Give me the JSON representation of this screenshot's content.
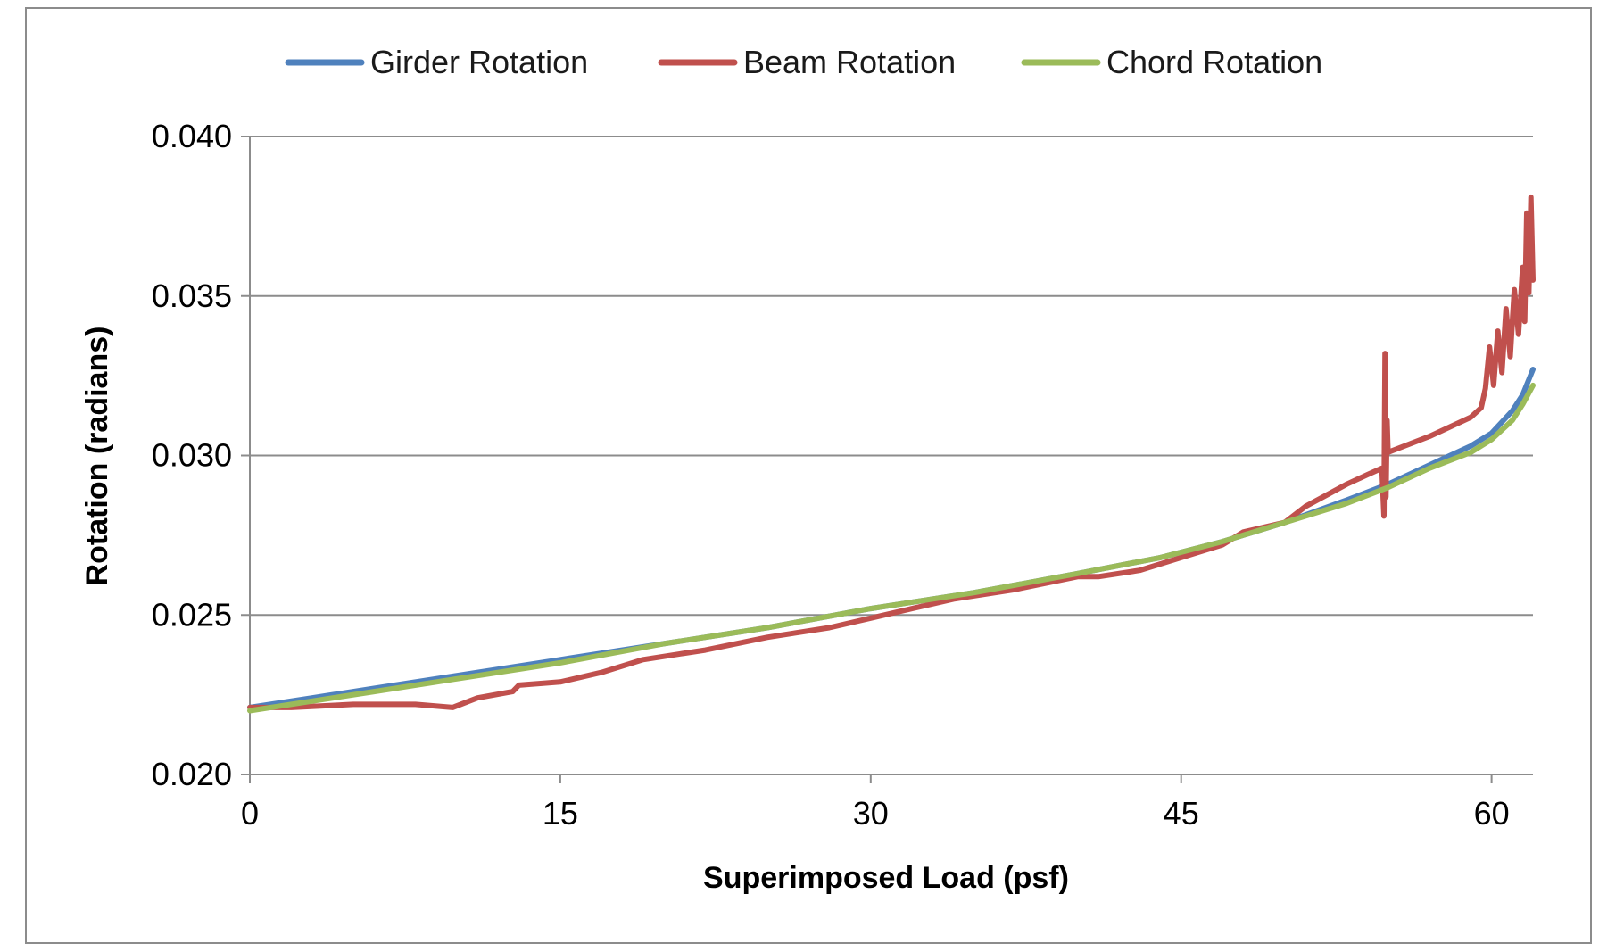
{
  "chart_data": {
    "type": "line",
    "title": "",
    "xlabel": "Superimposed Load (psf)",
    "ylabel": "Rotation (radians)",
    "xlim": [
      0,
      62
    ],
    "ylim": [
      0.02,
      0.04
    ],
    "x_ticks": [
      "0",
      "15",
      "30",
      "45",
      "60"
    ],
    "x_tick_values": [
      0,
      15,
      30,
      45,
      60
    ],
    "y_ticks": [
      "0.020",
      "0.025",
      "0.030",
      "0.035",
      "0.040"
    ],
    "y_tick_values": [
      0.02,
      0.025,
      0.03,
      0.035,
      0.04
    ],
    "grid": true,
    "legend_position": "top",
    "series": [
      {
        "name": "Girder Rotation",
        "color": "#4f81bd",
        "points": [
          [
            0,
            0.0221
          ],
          [
            3,
            0.0224
          ],
          [
            6,
            0.0227
          ],
          [
            10,
            0.0231
          ],
          [
            15,
            0.0236
          ],
          [
            20,
            0.0241
          ],
          [
            25,
            0.0246
          ],
          [
            30,
            0.0252
          ],
          [
            35,
            0.0257
          ],
          [
            40,
            0.0263
          ],
          [
            44,
            0.0268
          ],
          [
            47,
            0.0273
          ],
          [
            50,
            0.0279
          ],
          [
            53,
            0.0286
          ],
          [
            55,
            0.0291
          ],
          [
            57,
            0.0297
          ],
          [
            59,
            0.0303
          ],
          [
            60,
            0.0307
          ],
          [
            61,
            0.0314
          ],
          [
            61.5,
            0.0319
          ],
          [
            62,
            0.0327
          ]
        ]
      },
      {
        "name": "Beam Rotation",
        "color": "#c0504d",
        "points": [
          [
            0,
            0.0221
          ],
          [
            2,
            0.0221
          ],
          [
            5,
            0.0222
          ],
          [
            8,
            0.0222
          ],
          [
            9.8,
            0.0221
          ],
          [
            11,
            0.0224
          ],
          [
            12.7,
            0.0226
          ],
          [
            13,
            0.0228
          ],
          [
            15,
            0.0229
          ],
          [
            17,
            0.0232
          ],
          [
            19,
            0.0236
          ],
          [
            21,
            0.0238
          ],
          [
            22,
            0.0239
          ],
          [
            25,
            0.0243
          ],
          [
            28,
            0.0246
          ],
          [
            30,
            0.0249
          ],
          [
            32,
            0.0252
          ],
          [
            34,
            0.0255
          ],
          [
            37,
            0.0258
          ],
          [
            40,
            0.0262
          ],
          [
            41,
            0.0262
          ],
          [
            43,
            0.0264
          ],
          [
            45,
            0.0268
          ],
          [
            47,
            0.0272
          ],
          [
            48,
            0.0276
          ],
          [
            50,
            0.0279
          ],
          [
            51,
            0.0284
          ],
          [
            53,
            0.0291
          ],
          [
            54,
            0.0294
          ],
          [
            54.7,
            0.0296
          ],
          [
            54.8,
            0.0281
          ],
          [
            54.85,
            0.0332
          ],
          [
            54.9,
            0.0287
          ],
          [
            54.95,
            0.0311
          ],
          [
            55,
            0.0301
          ],
          [
            57,
            0.0306
          ],
          [
            59,
            0.0312
          ],
          [
            59.5,
            0.0315
          ],
          [
            59.7,
            0.0321
          ],
          [
            59.9,
            0.0334
          ],
          [
            60.1,
            0.0322
          ],
          [
            60.3,
            0.0339
          ],
          [
            60.5,
            0.0326
          ],
          [
            60.7,
            0.0346
          ],
          [
            60.9,
            0.0331
          ],
          [
            61.1,
            0.0352
          ],
          [
            61.3,
            0.0338
          ],
          [
            61.5,
            0.0359
          ],
          [
            61.6,
            0.0342
          ],
          [
            61.7,
            0.0376
          ],
          [
            61.8,
            0.0351
          ],
          [
            61.9,
            0.0381
          ],
          [
            62,
            0.0355
          ]
        ]
      },
      {
        "name": "Chord Rotation",
        "color": "#9bbb59",
        "points": [
          [
            0,
            0.022
          ],
          [
            3,
            0.0223
          ],
          [
            6,
            0.0226
          ],
          [
            10,
            0.023
          ],
          [
            15,
            0.0235
          ],
          [
            20,
            0.0241
          ],
          [
            25,
            0.0246
          ],
          [
            30,
            0.0252
          ],
          [
            35,
            0.0257
          ],
          [
            40,
            0.0263
          ],
          [
            44,
            0.0268
          ],
          [
            47,
            0.0273
          ],
          [
            50,
            0.0279
          ],
          [
            53,
            0.0285
          ],
          [
            55,
            0.029
          ],
          [
            57,
            0.0296
          ],
          [
            59,
            0.0301
          ],
          [
            60,
            0.0305
          ],
          [
            61,
            0.0311
          ],
          [
            61.5,
            0.0316
          ],
          [
            62,
            0.0322
          ]
        ]
      }
    ]
  }
}
